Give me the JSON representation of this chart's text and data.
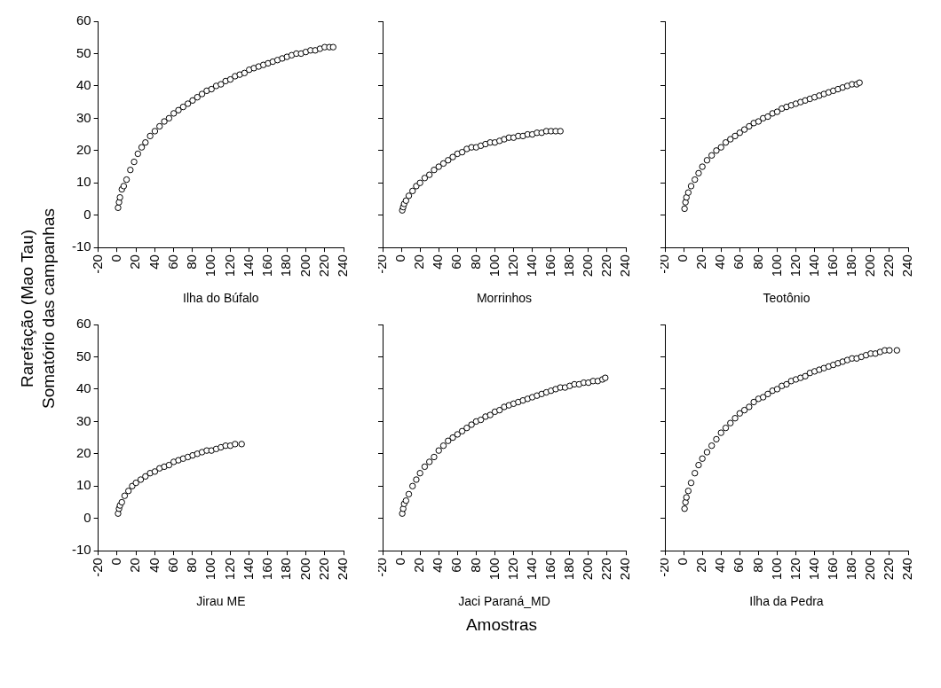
{
  "chart_data": [
    {
      "type": "scatter",
      "xlabel": "Ilha do Búfalo",
      "ylabel": "Rarefação (Mao Tau)\nSomatório das campanhas",
      "marker": "circle",
      "color": "#000000",
      "xlim": [
        -20,
        240
      ],
      "xticks": [
        -20,
        0,
        20,
        40,
        60,
        80,
        100,
        120,
        140,
        160,
        180,
        200,
        220,
        240
      ],
      "ylim": [
        -10,
        60
      ],
      "yticks": [
        -10,
        0,
        10,
        20,
        30,
        40,
        50,
        60
      ],
      "x": [
        1,
        2,
        3,
        5,
        7,
        10,
        14,
        18,
        22,
        26,
        30,
        35,
        40,
        45,
        50,
        55,
        60,
        65,
        70,
        75,
        80,
        85,
        90,
        95,
        100,
        105,
        110,
        115,
        120,
        125,
        130,
        135,
        140,
        145,
        150,
        155,
        160,
        165,
        170,
        175,
        180,
        185,
        190,
        195,
        200,
        205,
        210,
        215,
        220,
        225,
        229
      ],
      "values": [
        2.3,
        4,
        5.5,
        8,
        9,
        11,
        14,
        16.5,
        19,
        21,
        22.5,
        24.5,
        26,
        27.5,
        29,
        30,
        31.5,
        32.5,
        33.5,
        34.5,
        35.5,
        36.5,
        37.5,
        38.5,
        39,
        40,
        40.5,
        41.5,
        42,
        43,
        43.5,
        44,
        45,
        45.5,
        46,
        46.5,
        47,
        47.5,
        48,
        48.5,
        49,
        49.5,
        50,
        50,
        50.5,
        51,
        51,
        51.5,
        52,
        52,
        52
      ]
    },
    {
      "type": "scatter",
      "xlabel": "Morrinhos",
      "marker": "circle",
      "color": "#000000",
      "tick_labels": "x",
      "xlim": [
        -20,
        240
      ],
      "xticks": [
        -20,
        0,
        20,
        40,
        60,
        80,
        100,
        120,
        140,
        160,
        180,
        200,
        220,
        240
      ],
      "ylim": [
        -10,
        60
      ],
      "yticks": [
        -10,
        0,
        10,
        20,
        30,
        40,
        50,
        60
      ],
      "x": [
        1,
        2,
        3,
        5,
        8,
        12,
        16,
        20,
        25,
        30,
        35,
        40,
        45,
        50,
        55,
        60,
        65,
        70,
        75,
        80,
        85,
        90,
        95,
        100,
        105,
        110,
        115,
        120,
        125,
        130,
        135,
        140,
        145,
        150,
        155,
        160,
        165,
        170
      ],
      "values": [
        1.5,
        2.5,
        3.5,
        4.5,
        6,
        7.5,
        9,
        10,
        11.5,
        12.5,
        14,
        15,
        16,
        17,
        18,
        19,
        19.5,
        20.5,
        21,
        21,
        21.5,
        22,
        22.5,
        22.5,
        23,
        23.5,
        24,
        24,
        24.5,
        24.5,
        25,
        25,
        25.5,
        25.5,
        26,
        26,
        26,
        26
      ]
    },
    {
      "type": "scatter",
      "xlabel": "Teotônio",
      "marker": "circle",
      "color": "#000000",
      "tick_labels": "x",
      "xlim": [
        -20,
        240
      ],
      "xticks": [
        -20,
        0,
        20,
        40,
        60,
        80,
        100,
        120,
        140,
        160,
        180,
        200,
        220,
        240
      ],
      "ylim": [
        -10,
        60
      ],
      "yticks": [
        -10,
        0,
        10,
        20,
        30,
        40,
        50,
        60
      ],
      "x": [
        1,
        2,
        3,
        5,
        8,
        12,
        16,
        20,
        25,
        30,
        35,
        40,
        45,
        50,
        55,
        60,
        65,
        70,
        75,
        80,
        85,
        90,
        95,
        100,
        105,
        110,
        115,
        120,
        125,
        130,
        135,
        140,
        145,
        150,
        155,
        160,
        165,
        170,
        175,
        180,
        185,
        188
      ],
      "values": [
        2,
        4,
        5.5,
        7,
        9,
        11,
        13,
        15,
        17,
        18.5,
        20,
        21,
        22.5,
        23.5,
        24.5,
        25.5,
        26.5,
        27.5,
        28.5,
        29,
        30,
        30.5,
        31.5,
        32,
        33,
        33.5,
        34,
        34.5,
        35,
        35.5,
        36,
        36.5,
        37,
        37.5,
        38,
        38.5,
        39,
        39.5,
        40,
        40.5,
        40.5,
        41
      ]
    },
    {
      "type": "scatter",
      "xlabel": "Jirau ME",
      "marker": "circle",
      "color": "#000000",
      "xlim": [
        -20,
        240
      ],
      "xticks": [
        -20,
        0,
        20,
        40,
        60,
        80,
        100,
        120,
        140,
        160,
        180,
        200,
        220,
        240
      ],
      "ylim": [
        -10,
        60
      ],
      "yticks": [
        -10,
        0,
        10,
        20,
        30,
        40,
        50,
        60
      ],
      "x": [
        1,
        2,
        3,
        5,
        8,
        12,
        16,
        20,
        25,
        30,
        35,
        40,
        45,
        50,
        55,
        60,
        65,
        70,
        75,
        80,
        85,
        90,
        95,
        100,
        105,
        110,
        115,
        120,
        125,
        132
      ],
      "values": [
        1.5,
        3,
        4,
        5,
        7,
        8.5,
        10,
        11,
        12,
        13,
        14,
        14.5,
        15.5,
        16,
        16.5,
        17.5,
        18,
        18.5,
        19,
        19.5,
        20,
        20.5,
        21,
        21,
        21.5,
        22,
        22.5,
        22.5,
        23,
        23
      ]
    },
    {
      "type": "scatter",
      "xlabel": "Jaci Paraná_MD",
      "annotations": [
        "Amostras"
      ],
      "marker": "circle",
      "color": "#000000",
      "tick_labels": "x",
      "xlim": [
        -20,
        240
      ],
      "xticks": [
        -20,
        0,
        20,
        40,
        60,
        80,
        100,
        120,
        140,
        160,
        180,
        200,
        220,
        240
      ],
      "ylim": [
        -10,
        60
      ],
      "yticks": [
        -10,
        0,
        10,
        20,
        30,
        40,
        50,
        60
      ],
      "x": [
        1,
        2,
        3,
        5,
        8,
        12,
        16,
        20,
        25,
        30,
        35,
        40,
        45,
        50,
        55,
        60,
        65,
        70,
        75,
        80,
        85,
        90,
        95,
        100,
        105,
        110,
        115,
        120,
        125,
        130,
        135,
        140,
        145,
        150,
        155,
        160,
        165,
        170,
        175,
        180,
        185,
        190,
        195,
        200,
        205,
        210,
        215,
        218
      ],
      "values": [
        1.5,
        3,
        4.5,
        5.5,
        7.5,
        10,
        12,
        14,
        16,
        17.5,
        19,
        21,
        22.5,
        24,
        25,
        26,
        27,
        28,
        29,
        30,
        30.5,
        31.5,
        32,
        33,
        33.5,
        34.5,
        35,
        35.5,
        36,
        36.5,
        37,
        37.5,
        38,
        38.5,
        39,
        39.5,
        40,
        40.5,
        40.5,
        41,
        41.5,
        41.5,
        42,
        42,
        42.5,
        42.5,
        43,
        43.5
      ]
    },
    {
      "type": "scatter",
      "xlabel": "Ilha da Pedra",
      "marker": "circle",
      "color": "#000000",
      "tick_labels": "x",
      "xlim": [
        -20,
        240
      ],
      "xticks": [
        -20,
        0,
        20,
        40,
        60,
        80,
        100,
        120,
        140,
        160,
        180,
        200,
        220,
        240
      ],
      "ylim": [
        -10,
        60
      ],
      "yticks": [
        -10,
        0,
        10,
        20,
        30,
        40,
        50,
        60
      ],
      "x": [
        1,
        2,
        3,
        5,
        8,
        12,
        16,
        20,
        25,
        30,
        35,
        40,
        45,
        50,
        55,
        60,
        65,
        70,
        75,
        80,
        85,
        90,
        95,
        100,
        105,
        110,
        115,
        120,
        125,
        130,
        135,
        140,
        145,
        150,
        155,
        160,
        165,
        170,
        175,
        180,
        185,
        190,
        195,
        200,
        205,
        210,
        215,
        220,
        228
      ],
      "values": [
        3,
        5,
        6.5,
        8.5,
        11,
        14,
        16.5,
        18.5,
        20.5,
        22.5,
        24.5,
        26.5,
        28,
        29.5,
        31,
        32.5,
        33.5,
        34.5,
        36,
        37,
        37.5,
        38.5,
        39.5,
        40,
        41,
        41.5,
        42.5,
        43,
        43.5,
        44,
        45,
        45.5,
        46,
        46.5,
        47,
        47.5,
        48,
        48.5,
        49,
        49.5,
        49.5,
        50,
        50.5,
        51,
        51,
        51.5,
        52,
        52,
        52
      ]
    }
  ]
}
